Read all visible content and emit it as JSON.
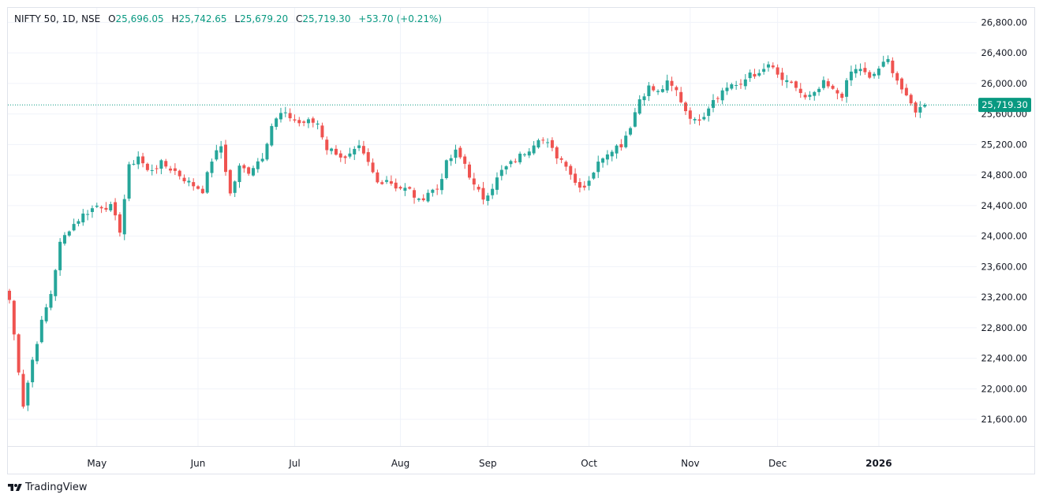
{
  "legend": {
    "symbol": "NIFTY 50, 1D, NSE",
    "open_label": "O",
    "open": "25,696.05",
    "high_label": "H",
    "high": "25,742.65",
    "low_label": "L",
    "low": "25,679.20",
    "close_label": "C",
    "close": "25,719.30",
    "change": "+53.70 (+0.21%)"
  },
  "branding": {
    "text": "TradingView",
    "icon": "tradingview-logo-icon"
  },
  "colors": {
    "up": "#26a69a",
    "down": "#ef5350",
    "grid": "#f0f3fa",
    "axis_text": "#131722",
    "last_price_bg": "#089981",
    "last_price_line": "#089981"
  },
  "chart_data": {
    "type": "candlestick",
    "symbol": "NIFTY 50",
    "interval": "1D",
    "exchange": "NSE",
    "y_ticks": [
      21600,
      22000,
      22400,
      22800,
      23200,
      23600,
      24000,
      24400,
      24800,
      25200,
      25600,
      26000,
      26400,
      26800
    ],
    "y_tick_labels": [
      "21,600.00",
      "22,000.00",
      "22,400.00",
      "22,800.00",
      "23,200.00",
      "23,600.00",
      "24,000.00",
      "24,400.00",
      "24,800.00",
      "25,200.00",
      "25,600.00",
      "26,000.00",
      "26,400.00",
      "26,800.00"
    ],
    "ylim": [
      21250,
      26990
    ],
    "x_labels": [
      {
        "label": "May",
        "index": 19,
        "bold": false
      },
      {
        "label": "Jun",
        "index": 41,
        "bold": false
      },
      {
        "label": "Jul",
        "index": 62,
        "bold": false
      },
      {
        "label": "Aug",
        "index": 85,
        "bold": false
      },
      {
        "label": "Sep",
        "index": 104,
        "bold": false
      },
      {
        "label": "Oct",
        "index": 126,
        "bold": false
      },
      {
        "label": "Nov",
        "index": 148,
        "bold": false
      },
      {
        "label": "Dec",
        "index": 167,
        "bold": false
      },
      {
        "label": "2026",
        "index": 189,
        "bold": true
      }
    ],
    "last_price": 25719.3,
    "last_price_label": "25,719.30",
    "anchors": [
      [
        0,
        23165
      ],
      [
        3,
        21790
      ],
      [
        5,
        22380
      ],
      [
        7,
        22870
      ],
      [
        9,
        23250
      ],
      [
        11,
        23900
      ],
      [
        13,
        24100
      ],
      [
        16,
        24280
      ],
      [
        19,
        24400
      ],
      [
        22,
        24380
      ],
      [
        24,
        24080
      ],
      [
        26,
        24900
      ],
      [
        28,
        25050
      ],
      [
        30,
        24850
      ],
      [
        33,
        24950
      ],
      [
        36,
        24850
      ],
      [
        39,
        24700
      ],
      [
        42,
        24600
      ],
      [
        44,
        25000
      ],
      [
        46,
        25180
      ],
      [
        48,
        24550
      ],
      [
        50,
        24900
      ],
      [
        52,
        24850
      ],
      [
        55,
        25050
      ],
      [
        57,
        25450
      ],
      [
        59,
        25600
      ],
      [
        61,
        25560
      ],
      [
        63,
        25480
      ],
      [
        65,
        25500
      ],
      [
        67,
        25480
      ],
      [
        69,
        25150
      ],
      [
        71,
        25100
      ],
      [
        73,
        25000
      ],
      [
        76,
        25150
      ],
      [
        78,
        24950
      ],
      [
        80,
        24700
      ],
      [
        82,
        24750
      ],
      [
        84,
        24650
      ],
      [
        87,
        24600
      ],
      [
        89,
        24450
      ],
      [
        91,
        24580
      ],
      [
        93,
        24620
      ],
      [
        95,
        24950
      ],
      [
        97,
        25100
      ],
      [
        99,
        24950
      ],
      [
        101,
        24650
      ],
      [
        103,
        24500
      ],
      [
        105,
        24650
      ],
      [
        107,
        24850
      ],
      [
        109,
        24950
      ],
      [
        111,
        25050
      ],
      [
        113,
        25150
      ],
      [
        115,
        25300
      ],
      [
        117,
        25200
      ],
      [
        119,
        25050
      ],
      [
        121,
        24950
      ],
      [
        123,
        24700
      ],
      [
        125,
        24650
      ],
      [
        127,
        24850
      ],
      [
        129,
        25050
      ],
      [
        131,
        25150
      ],
      [
        133,
        25200
      ],
      [
        135,
        25450
      ],
      [
        137,
        25800
      ],
      [
        139,
        25950
      ],
      [
        141,
        25880
      ],
      [
        143,
        26000
      ],
      [
        145,
        25900
      ],
      [
        147,
        25650
      ],
      [
        149,
        25500
      ],
      [
        151,
        25600
      ],
      [
        153,
        25800
      ],
      [
        155,
        25900
      ],
      [
        157,
        26000
      ],
      [
        159,
        25950
      ],
      [
        161,
        26150
      ],
      [
        163,
        26100
      ],
      [
        165,
        26250
      ],
      [
        167,
        26100
      ],
      [
        169,
        26000
      ],
      [
        171,
        25950
      ],
      [
        173,
        25800
      ],
      [
        175,
        25850
      ],
      [
        177,
        26000
      ],
      [
        179,
        25900
      ],
      [
        181,
        25850
      ],
      [
        183,
        26150
      ],
      [
        185,
        26200
      ],
      [
        187,
        26050
      ],
      [
        189,
        26200
      ],
      [
        191,
        26300
      ],
      [
        193,
        26050
      ],
      [
        195,
        25800
      ],
      [
        197,
        25650
      ],
      [
        199,
        25700
      ]
    ],
    "x_count": 200
  }
}
